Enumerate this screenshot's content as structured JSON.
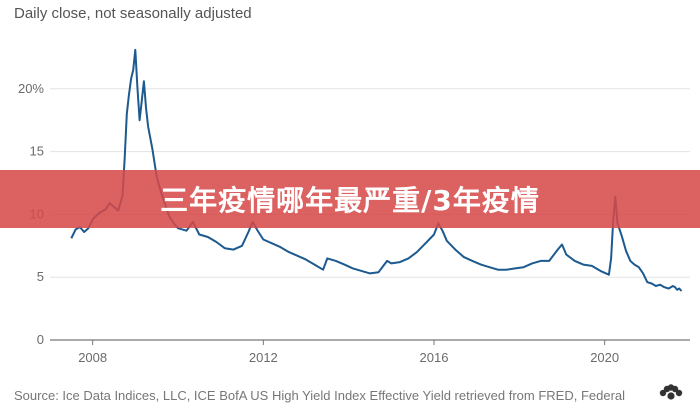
{
  "chart_data": {
    "type": "line",
    "title": "Daily close, not seasonally adjusted",
    "xlabel": "",
    "ylabel": "",
    "xlim": [
      2007.0,
      2022.0
    ],
    "ylim": [
      0,
      25
    ],
    "x_ticks": [
      2008,
      2012,
      2016,
      2020
    ],
    "x_tick_labels": [
      "2008",
      "2012",
      "2016",
      "2020"
    ],
    "y_ticks": [
      0,
      5,
      10,
      15,
      20
    ],
    "y_tick_labels": [
      "0",
      "5",
      "10",
      "15",
      "20%"
    ],
    "grid": "horizontal",
    "legend": "none",
    "series": [
      {
        "color": "#1c5a8f",
        "points": [
          [
            2007.5,
            8.1
          ],
          [
            2007.6,
            8.8
          ],
          [
            2007.7,
            9.0
          ],
          [
            2007.8,
            8.6
          ],
          [
            2007.9,
            8.9
          ],
          [
            2008.0,
            9.6
          ],
          [
            2008.15,
            10.1
          ],
          [
            2008.3,
            10.4
          ],
          [
            2008.4,
            10.9
          ],
          [
            2008.5,
            10.6
          ],
          [
            2008.6,
            10.3
          ],
          [
            2008.7,
            11.5
          ],
          [
            2008.75,
            14.5
          ],
          [
            2008.8,
            18.0
          ],
          [
            2008.85,
            19.5
          ],
          [
            2008.9,
            20.8
          ],
          [
            2008.95,
            21.5
          ],
          [
            2009.0,
            23.1
          ],
          [
            2009.05,
            20.0
          ],
          [
            2009.1,
            17.5
          ],
          [
            2009.15,
            19.0
          ],
          [
            2009.2,
            20.6
          ],
          [
            2009.25,
            18.5
          ],
          [
            2009.3,
            17.0
          ],
          [
            2009.4,
            15.2
          ],
          [
            2009.5,
            13.0
          ],
          [
            2009.6,
            11.8
          ],
          [
            2009.7,
            10.8
          ],
          [
            2009.8,
            9.8
          ],
          [
            2009.9,
            9.3
          ],
          [
            2010.0,
            8.9
          ],
          [
            2010.2,
            8.7
          ],
          [
            2010.35,
            9.4
          ],
          [
            2010.5,
            8.4
          ],
          [
            2010.7,
            8.2
          ],
          [
            2010.9,
            7.8
          ],
          [
            2011.1,
            7.3
          ],
          [
            2011.3,
            7.2
          ],
          [
            2011.5,
            7.5
          ],
          [
            2011.65,
            8.6
          ],
          [
            2011.75,
            9.4
          ],
          [
            2011.85,
            8.8
          ],
          [
            2012.0,
            8.0
          ],
          [
            2012.2,
            7.7
          ],
          [
            2012.4,
            7.4
          ],
          [
            2012.6,
            7.0
          ],
          [
            2012.8,
            6.7
          ],
          [
            2013.0,
            6.4
          ],
          [
            2013.2,
            6.0
          ],
          [
            2013.4,
            5.6
          ],
          [
            2013.5,
            6.5
          ],
          [
            2013.7,
            6.3
          ],
          [
            2013.9,
            6.0
          ],
          [
            2014.1,
            5.7
          ],
          [
            2014.3,
            5.5
          ],
          [
            2014.5,
            5.3
          ],
          [
            2014.7,
            5.4
          ],
          [
            2014.9,
            6.3
          ],
          [
            2015.0,
            6.1
          ],
          [
            2015.2,
            6.2
          ],
          [
            2015.4,
            6.5
          ],
          [
            2015.6,
            7.0
          ],
          [
            2015.8,
            7.7
          ],
          [
            2016.0,
            8.4
          ],
          [
            2016.1,
            9.3
          ],
          [
            2016.2,
            8.7
          ],
          [
            2016.3,
            7.9
          ],
          [
            2016.5,
            7.2
          ],
          [
            2016.7,
            6.6
          ],
          [
            2016.9,
            6.3
          ],
          [
            2017.1,
            6.0
          ],
          [
            2017.3,
            5.8
          ],
          [
            2017.5,
            5.6
          ],
          [
            2017.7,
            5.6
          ],
          [
            2017.9,
            5.7
          ],
          [
            2018.1,
            5.8
          ],
          [
            2018.3,
            6.1
          ],
          [
            2018.5,
            6.3
          ],
          [
            2018.7,
            6.3
          ],
          [
            2018.9,
            7.2
          ],
          [
            2019.0,
            7.6
          ],
          [
            2019.1,
            6.8
          ],
          [
            2019.3,
            6.3
          ],
          [
            2019.5,
            6.0
          ],
          [
            2019.7,
            5.9
          ],
          [
            2019.9,
            5.5
          ],
          [
            2020.1,
            5.2
          ],
          [
            2020.15,
            6.5
          ],
          [
            2020.2,
            9.5
          ],
          [
            2020.25,
            11.4
          ],
          [
            2020.3,
            9.3
          ],
          [
            2020.4,
            8.3
          ],
          [
            2020.5,
            7.1
          ],
          [
            2020.6,
            6.3
          ],
          [
            2020.7,
            6.0
          ],
          [
            2020.8,
            5.8
          ],
          [
            2020.9,
            5.3
          ],
          [
            2021.0,
            4.6
          ],
          [
            2021.1,
            4.5
          ],
          [
            2021.2,
            4.3
          ],
          [
            2021.3,
            4.4
          ],
          [
            2021.4,
            4.2
          ],
          [
            2021.5,
            4.1
          ],
          [
            2021.6,
            4.3
          ],
          [
            2021.65,
            4.2
          ],
          [
            2021.7,
            4.0
          ],
          [
            2021.75,
            4.1
          ],
          [
            2021.8,
            3.9
          ]
        ]
      }
    ]
  },
  "banner": {
    "text": "三年疫情哪年最严重/3年疫情"
  },
  "source_note": "Source: Ice Data Indices, LLC, ICE BofA US High Yield Index Effective Yield retrieved from FRED, Federal",
  "colors": {
    "line": "#1c5a8f",
    "banner": "#d64848",
    "grid": "#e3e3e3",
    "axis": "#777777"
  },
  "logo_icon": "nbc-peacock-icon"
}
